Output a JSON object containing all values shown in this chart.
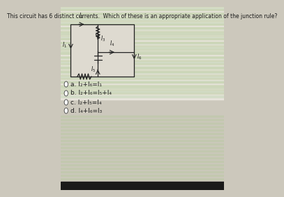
{
  "title": "This circuit has 6 distinct currents.  Which of these is an appropriate application of the junction rule?",
  "bg_top_color": "#ccc8bc",
  "bg_bottom_color": "#d8d4c8",
  "circuit_bg": "#dedad0",
  "circuit_border": "#888880",
  "options": [
    {
      "label": "a.",
      "text": "I₂+I₆=I₁"
    },
    {
      "label": "b.",
      "text": "I₂+I₆=I₅+I₄"
    },
    {
      "label": "c.",
      "text": "I₂+I₅=I₄"
    },
    {
      "label": "d.",
      "text": "I₄+I₆=I₃"
    }
  ],
  "title_fontsize": 5.5,
  "option_fontsize": 6.5,
  "label_fontsize": 5.5,
  "text_color": "#1a1a1a",
  "radio_color": "#555555",
  "line_color": "#222222",
  "circuit_lw": 0.9
}
